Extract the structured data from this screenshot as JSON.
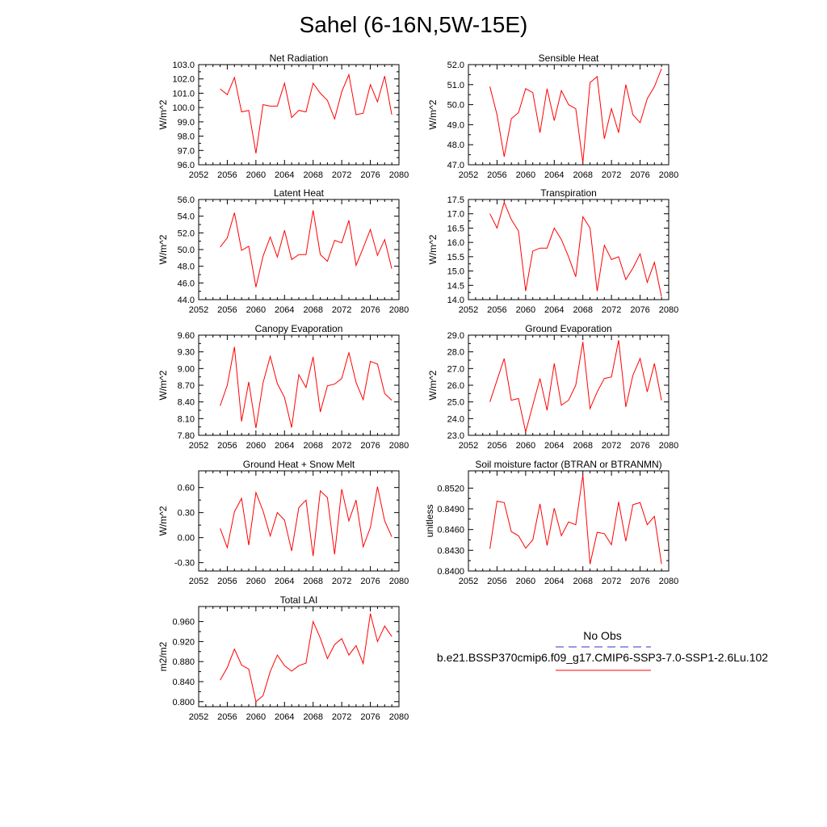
{
  "title": "Sahel (6-16N,5W-15E)",
  "legend": {
    "obs_label": "No Obs",
    "model_label": "b.e21.BSSP370cmip6.f09_g17.CMIP6-SSP3-7.0-SSP1-2.6Lu.102",
    "obs_color": "#3333cc",
    "model_color": "#ff0000"
  },
  "chart_data": [
    {
      "type": "line",
      "title": "Net Radiation",
      "ylabel": "W/m^2",
      "xlim": [
        2052,
        2080
      ],
      "xticks": [
        "2052",
        "2056",
        "2060",
        "2064",
        "2068",
        "2072",
        "2076",
        "2080"
      ],
      "ylim": [
        96.0,
        103.0
      ],
      "yticks": [
        "96.0",
        "97.0",
        "98.0",
        "99.0",
        "100.0",
        "101.0",
        "102.0",
        "103.0"
      ],
      "x": [
        2055,
        2056,
        2057,
        2058,
        2059,
        2060,
        2061,
        2062,
        2063,
        2064,
        2065,
        2066,
        2067,
        2068,
        2069,
        2070,
        2071,
        2072,
        2073,
        2074,
        2075,
        2076,
        2077,
        2078,
        2079
      ],
      "values": [
        101.3,
        100.9,
        102.1,
        99.7,
        99.8,
        96.8,
        100.2,
        100.1,
        100.1,
        101.7,
        99.3,
        99.8,
        99.7,
        101.7,
        101.0,
        100.5,
        99.2,
        101.1,
        102.3,
        99.5,
        99.6,
        101.6,
        100.4,
        102.2,
        99.5
      ]
    },
    {
      "type": "line",
      "title": "Sensible Heat",
      "ylabel": "W/m^2",
      "xlim": [
        2052,
        2080
      ],
      "xticks": [
        "2052",
        "2056",
        "2060",
        "2064",
        "2068",
        "2072",
        "2076",
        "2080"
      ],
      "ylim": [
        47.0,
        52.0
      ],
      "yticks": [
        "47.0",
        "48.0",
        "49.0",
        "50.0",
        "51.0",
        "52.0"
      ],
      "x": [
        2055,
        2056,
        2057,
        2058,
        2059,
        2060,
        2061,
        2062,
        2063,
        2064,
        2065,
        2066,
        2067,
        2068,
        2069,
        2070,
        2071,
        2072,
        2073,
        2074,
        2075,
        2076,
        2077,
        2078,
        2079
      ],
      "values": [
        50.9,
        49.5,
        47.4,
        49.3,
        49.6,
        50.8,
        50.6,
        48.6,
        50.8,
        49.2,
        50.7,
        50.0,
        49.8,
        47.1,
        51.1,
        51.4,
        48.3,
        49.8,
        48.6,
        51.0,
        49.5,
        49.1,
        50.3,
        50.9,
        51.8
      ]
    },
    {
      "type": "line",
      "title": "Latent Heat",
      "ylabel": "W/m^2",
      "xlim": [
        2052,
        2080
      ],
      "xticks": [
        "2052",
        "2056",
        "2060",
        "2064",
        "2068",
        "2072",
        "2076",
        "2080"
      ],
      "ylim": [
        44.0,
        56.0
      ],
      "yticks": [
        "44.0",
        "46.0",
        "48.0",
        "50.0",
        "52.0",
        "54.0",
        "56.0"
      ],
      "x": [
        2055,
        2056,
        2057,
        2058,
        2059,
        2060,
        2061,
        2062,
        2063,
        2064,
        2065,
        2066,
        2067,
        2068,
        2069,
        2070,
        2071,
        2072,
        2073,
        2074,
        2075,
        2076,
        2077,
        2078,
        2079
      ],
      "values": [
        50.3,
        51.4,
        54.4,
        49.9,
        50.4,
        45.5,
        49.2,
        51.5,
        49.1,
        52.3,
        48.8,
        49.4,
        49.4,
        54.7,
        49.4,
        48.6,
        51.1,
        50.8,
        53.5,
        48.1,
        50.2,
        52.4,
        49.3,
        51.2,
        47.7
      ]
    },
    {
      "type": "line",
      "title": "Transpiration",
      "ylabel": "W/m^2",
      "xlim": [
        2052,
        2080
      ],
      "xticks": [
        "2052",
        "2056",
        "2060",
        "2064",
        "2068",
        "2072",
        "2076",
        "2080"
      ],
      "ylim": [
        14.0,
        17.5
      ],
      "yticks": [
        "14.0",
        "14.5",
        "15.0",
        "15.5",
        "16.0",
        "16.5",
        "17.0",
        "17.5"
      ],
      "x": [
        2055,
        2056,
        2057,
        2058,
        2059,
        2060,
        2061,
        2062,
        2063,
        2064,
        2065,
        2066,
        2067,
        2068,
        2069,
        2070,
        2071,
        2072,
        2073,
        2074,
        2075,
        2076,
        2077,
        2078,
        2079
      ],
      "values": [
        17.0,
        16.5,
        17.4,
        16.8,
        16.4,
        14.3,
        15.7,
        15.8,
        15.8,
        16.5,
        16.1,
        15.5,
        14.8,
        16.9,
        16.5,
        14.3,
        15.9,
        15.4,
        15.5,
        14.7,
        15.1,
        15.6,
        14.6,
        15.3,
        14.1
      ]
    },
    {
      "type": "line",
      "title": "Canopy Evaporation",
      "ylabel": "W/m^2",
      "xlim": [
        2052,
        2080
      ],
      "xticks": [
        "2052",
        "2056",
        "2060",
        "2064",
        "2068",
        "2072",
        "2076",
        "2080"
      ],
      "ylim": [
        7.8,
        9.6
      ],
      "yticks": [
        "7.80",
        "8.10",
        "8.40",
        "8.70",
        "9.00",
        "9.30",
        "9.60"
      ],
      "x": [
        2055,
        2056,
        2057,
        2058,
        2059,
        2060,
        2061,
        2062,
        2063,
        2064,
        2065,
        2066,
        2067,
        2068,
        2069,
        2070,
        2071,
        2072,
        2073,
        2074,
        2075,
        2076,
        2077,
        2078,
        2079
      ],
      "values": [
        8.33,
        8.7,
        9.39,
        8.05,
        8.76,
        7.93,
        8.74,
        9.22,
        8.73,
        8.48,
        7.94,
        8.89,
        8.66,
        9.21,
        8.22,
        8.69,
        8.72,
        8.82,
        9.29,
        8.75,
        8.44,
        9.13,
        9.08,
        8.55,
        8.43
      ]
    },
    {
      "type": "line",
      "title": "Ground Evaporation",
      "ylabel": "W/m^2",
      "xlim": [
        2052,
        2080
      ],
      "xticks": [
        "2052",
        "2056",
        "2060",
        "2064",
        "2068",
        "2072",
        "2076",
        "2080"
      ],
      "ylim": [
        23.0,
        29.0
      ],
      "yticks": [
        "23.0",
        "24.0",
        "25.0",
        "26.0",
        "27.0",
        "28.0",
        "29.0"
      ],
      "x": [
        2055,
        2056,
        2057,
        2058,
        2059,
        2060,
        2061,
        2062,
        2063,
        2064,
        2065,
        2066,
        2067,
        2068,
        2069,
        2070,
        2071,
        2072,
        2073,
        2074,
        2075,
        2076,
        2077,
        2078,
        2079
      ],
      "values": [
        25.0,
        26.3,
        27.6,
        25.1,
        25.2,
        23.2,
        24.8,
        26.4,
        24.5,
        27.3,
        24.8,
        25.1,
        26.0,
        28.6,
        24.6,
        25.6,
        26.4,
        26.5,
        28.7,
        24.7,
        26.6,
        27.6,
        25.6,
        27.3,
        25.1
      ]
    },
    {
      "type": "line",
      "title": "Ground Heat + Snow Melt",
      "ylabel": "W/m^2",
      "xlim": [
        2052,
        2080
      ],
      "xticks": [
        "2052",
        "2056",
        "2060",
        "2064",
        "2068",
        "2072",
        "2076",
        "2080"
      ],
      "ylim": [
        -0.4,
        0.8
      ],
      "yticks": [
        "-0.30",
        "0.00",
        "0.30",
        "0.60"
      ],
      "ytick_values": [
        -0.3,
        0.0,
        0.3,
        0.6
      ],
      "x": [
        2055,
        2056,
        2057,
        2058,
        2059,
        2060,
        2061,
        2062,
        2063,
        2064,
        2065,
        2066,
        2067,
        2068,
        2069,
        2070,
        2071,
        2072,
        2073,
        2074,
        2075,
        2076,
        2077,
        2078,
        2079
      ],
      "values": [
        0.11,
        -0.12,
        0.31,
        0.47,
        -0.09,
        0.54,
        0.32,
        0.02,
        0.3,
        0.21,
        -0.16,
        0.36,
        0.45,
        -0.22,
        0.56,
        0.48,
        -0.2,
        0.58,
        0.2,
        0.45,
        -0.11,
        0.12,
        0.61,
        0.2,
        0.01
      ]
    },
    {
      "type": "line",
      "title": "Soil moisture factor (BTRAN or BTRANMN)",
      "ylabel": "unitless",
      "xlim": [
        2052,
        2080
      ],
      "xticks": [
        "2052",
        "2056",
        "2060",
        "2064",
        "2068",
        "2072",
        "2076",
        "2080"
      ],
      "ylim": [
        0.84,
        0.8545
      ],
      "yticks": [
        "0.8400",
        "0.8430",
        "0.8460",
        "0.8490",
        "0.8520"
      ],
      "ytick_values": [
        0.84,
        0.843,
        0.846,
        0.849,
        0.852
      ],
      "x": [
        2055,
        2056,
        2057,
        2058,
        2059,
        2060,
        2061,
        2062,
        2063,
        2064,
        2065,
        2066,
        2067,
        2068,
        2069,
        2070,
        2071,
        2072,
        2073,
        2074,
        2075,
        2076,
        2077,
        2078,
        2079
      ],
      "values": [
        0.8432,
        0.8501,
        0.8499,
        0.8457,
        0.8451,
        0.8433,
        0.8445,
        0.8497,
        0.8437,
        0.8491,
        0.8451,
        0.8471,
        0.8467,
        0.8539,
        0.841,
        0.8456,
        0.8454,
        0.8438,
        0.85,
        0.8443,
        0.8496,
        0.8499,
        0.8467,
        0.8479,
        0.841
      ]
    },
    {
      "type": "line",
      "title": "Total LAI",
      "ylabel": "m2/m2",
      "xlim": [
        2052,
        2080
      ],
      "xticks": [
        "2052",
        "2056",
        "2060",
        "2064",
        "2068",
        "2072",
        "2076",
        "2080"
      ],
      "ylim": [
        0.79,
        0.99
      ],
      "yticks": [
        "0.800",
        "0.840",
        "0.880",
        "0.920",
        "0.960"
      ],
      "ytick_values": [
        0.8,
        0.84,
        0.88,
        0.92,
        0.96
      ],
      "x": [
        2055,
        2056,
        2057,
        2058,
        2059,
        2060,
        2061,
        2062,
        2063,
        2064,
        2065,
        2066,
        2067,
        2068,
        2069,
        2070,
        2071,
        2072,
        2073,
        2074,
        2075,
        2076,
        2077,
        2078,
        2079
      ],
      "values": [
        0.843,
        0.868,
        0.905,
        0.873,
        0.865,
        0.8,
        0.812,
        0.86,
        0.893,
        0.872,
        0.861,
        0.872,
        0.877,
        0.96,
        0.927,
        0.886,
        0.914,
        0.926,
        0.893,
        0.912,
        0.876,
        0.976,
        0.92,
        0.951,
        0.93
      ]
    }
  ]
}
